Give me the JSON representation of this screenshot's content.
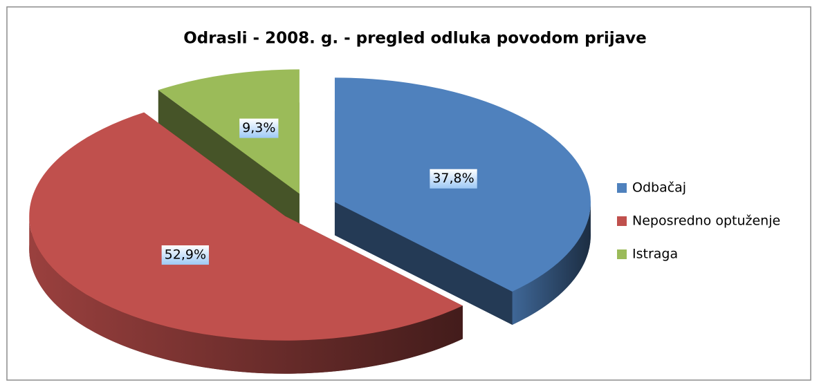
{
  "chart_data": {
    "type": "pie",
    "title": "Odrasli - 2008. g. - pregled odluka povodom prijave",
    "categories": [
      "Odbačaj",
      "Neposredno optuženje",
      "Istraga"
    ],
    "values": [
      37.8,
      52.9,
      9.3
    ],
    "value_labels": [
      "37,8%",
      "52,9%",
      "9,3%"
    ],
    "colors": [
      "#4f81bd",
      "#c0504d",
      "#9bbb59"
    ],
    "legend": "right"
  }
}
